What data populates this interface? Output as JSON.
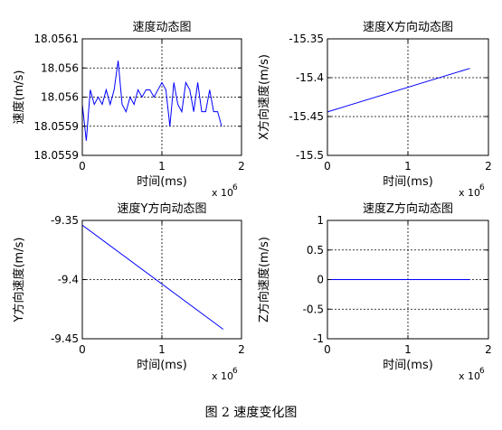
{
  "caption": "图 2 速度变化图",
  "colors": {
    "line": "#0000ff",
    "axis": "#000000",
    "grid": "#000000",
    "background": "#ffffff"
  },
  "chart_data": [
    {
      "type": "line",
      "title": "速度动态图",
      "xlabel": "时间(ms)",
      "ylabel": "速度(m/s)",
      "x_exponent_label": "x 10",
      "x_exponent_power": "6",
      "xlim": [
        0,
        2
      ],
      "ylim": [
        18.05592,
        18.05608
      ],
      "xticks": [
        0,
        1,
        2
      ],
      "xtick_labels": [
        "0",
        "1",
        "2"
      ],
      "yticks": [
        18.05592,
        18.05596,
        18.056,
        18.05604,
        18.05608
      ],
      "ytick_labels": [
        "18.0559",
        "18.0559",
        "18.056",
        "18.056",
        "18.0561"
      ],
      "grid": true,
      "series": [
        {
          "x": [
            0,
            0.05,
            0.1,
            0.15,
            0.2,
            0.25,
            0.3,
            0.35,
            0.4,
            0.45,
            0.5,
            0.55,
            0.6,
            0.65,
            0.7,
            0.75,
            0.8,
            0.85,
            0.9,
            0.95,
            1.0,
            1.05,
            1.1,
            1.15,
            1.2,
            1.25,
            1.3,
            1.35,
            1.4,
            1.45,
            1.5,
            1.55,
            1.6,
            1.65,
            1.7,
            1.75
          ],
          "y": [
            18.05599,
            18.05594,
            18.05601,
            18.05599,
            18.056,
            18.05599,
            18.05601,
            18.05599,
            18.05601,
            18.05605,
            18.05599,
            18.05598,
            18.056,
            18.05599,
            18.05601,
            18.056,
            18.05601,
            18.05601,
            18.056,
            18.05601,
            18.05602,
            18.05601,
            18.05596,
            18.05602,
            18.05599,
            18.05598,
            18.05602,
            18.05601,
            18.05598,
            18.05602,
            18.05598,
            18.05598,
            18.05601,
            18.05598,
            18.05598,
            18.05596
          ]
        }
      ]
    },
    {
      "type": "line",
      "title": "速度X方向动态图",
      "xlabel": "时间(ms)",
      "ylabel": "X方向速度(m/s)",
      "x_exponent_label": "x 10",
      "x_exponent_power": "6",
      "xlim": [
        0,
        2
      ],
      "ylim": [
        -15.5,
        -15.35
      ],
      "xticks": [
        0,
        1,
        2
      ],
      "xtick_labels": [
        "0",
        "1",
        "2"
      ],
      "yticks": [
        -15.5,
        -15.45,
        -15.4,
        -15.35
      ],
      "ytick_labels": [
        "-15.5",
        "-15.45",
        "-15.4",
        "-15.35"
      ],
      "grid": true,
      "series": [
        {
          "x": [
            0,
            1.77
          ],
          "y": [
            -15.444,
            -15.388
          ]
        }
      ]
    },
    {
      "type": "line",
      "title": "速度Y方向动态图",
      "xlabel": "时间(ms)",
      "ylabel": "Y方向速度(m/s)",
      "x_exponent_label": "x 10",
      "x_exponent_power": "6",
      "xlim": [
        0,
        2
      ],
      "ylim": [
        -9.45,
        -9.35
      ],
      "xticks": [
        0,
        1,
        2
      ],
      "xtick_labels": [
        "0",
        "1",
        "2"
      ],
      "yticks": [
        -9.45,
        -9.4,
        -9.35
      ],
      "ytick_labels": [
        "-9.45",
        "-9.4",
        "-9.35"
      ],
      "grid": true,
      "series": [
        {
          "x": [
            0,
            1.77
          ],
          "y": [
            -9.354,
            -9.442
          ]
        }
      ]
    },
    {
      "type": "line",
      "title": "速度Z方向动态图",
      "xlabel": "时间(ms)",
      "ylabel": "Z方向速度(m/s)",
      "x_exponent_label": "x 10",
      "x_exponent_power": "6",
      "xlim": [
        0,
        2
      ],
      "ylim": [
        -1,
        1
      ],
      "xticks": [
        0,
        1,
        2
      ],
      "xtick_labels": [
        "0",
        "1",
        "2"
      ],
      "yticks": [
        -1,
        -0.5,
        0,
        0.5,
        1
      ],
      "ytick_labels": [
        "-1",
        "-0.5",
        "0",
        "0.5",
        "1"
      ],
      "grid": true,
      "series": [
        {
          "x": [
            0,
            1.77
          ],
          "y": [
            0,
            0
          ]
        }
      ]
    }
  ]
}
